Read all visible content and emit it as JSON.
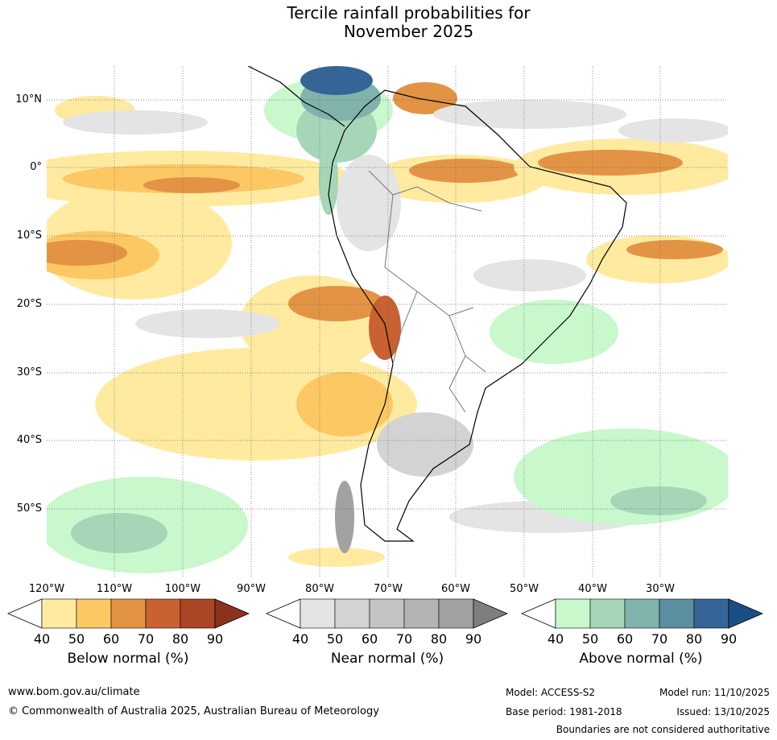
{
  "title": {
    "line1": "Tercile rainfall probabilities for",
    "line2": "November 2025"
  },
  "lat_labels": [
    "10°N",
    "0°",
    "10°S",
    "20°S",
    "30°S",
    "40°S",
    "50°S"
  ],
  "lon_labels": [
    "120°W",
    "110°W",
    "100°W",
    "90°W",
    "80°W",
    "70°W",
    "60°W",
    "50°W",
    "40°W",
    "30°W"
  ],
  "legends": [
    {
      "title": "Below normal (%)",
      "ticks": [
        "40",
        "50",
        "60",
        "70",
        "80",
        "90"
      ],
      "colors": [
        "#ffeaa0",
        "#fcc863",
        "#e29444",
        "#c96130",
        "#aa4526"
      ],
      "cap_color": "#8c321e"
    },
    {
      "title": "Near normal (%)",
      "ticks": [
        "40",
        "50",
        "60",
        "70",
        "80",
        "90"
      ],
      "colors": [
        "#e4e4e4",
        "#d3d3d3",
        "#c4c4c4",
        "#b4b4b4",
        "#a2a2a2"
      ],
      "cap_color": "#7e7e7e"
    },
    {
      "title": "Above normal (%)",
      "ticks": [
        "40",
        "50",
        "60",
        "70",
        "80",
        "90"
      ],
      "colors": [
        "#c8f8cc",
        "#a5d6b8",
        "#7fb3ac",
        "#5b8f9f",
        "#356596"
      ],
      "cap_color": "#1a4f86"
    }
  ],
  "footer": {
    "website": "www.bom.gov.au/climate",
    "copyright": "© Commonwealth of Australia 2025, Australian Bureau of Meteorology",
    "model": "Model: ACCESS-S2",
    "base_period": "Base period: 1981-2018",
    "model_run": "Model run: 11/10/2025",
    "issued": "Issued: 13/10/2025",
    "disclaimer": "Boundaries are not considered authoritative"
  }
}
